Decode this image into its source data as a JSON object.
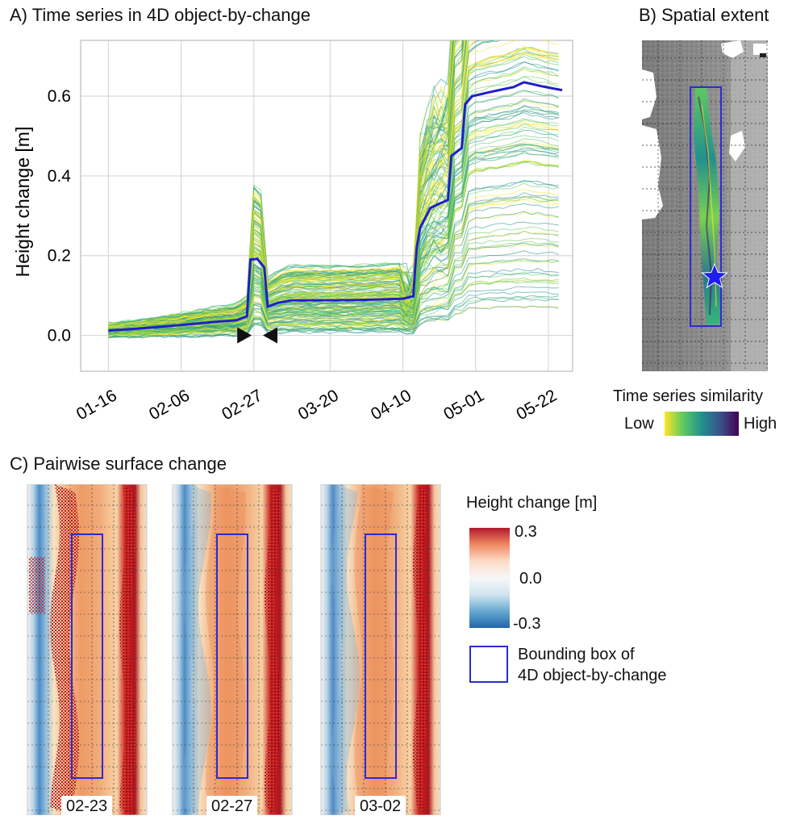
{
  "panel_a": {
    "title": "A) Time series in 4D object-by-change",
    "ylabel": "Height change [m]"
  },
  "panel_b": {
    "title": "B) Spatial extent",
    "colorbar_title": "Time series similarity",
    "low_label": "Low",
    "high_label": "High",
    "colormap": [
      "#fde725",
      "#5ec962",
      "#21918c",
      "#3b528b",
      "#440154"
    ],
    "marker_icon": "star-icon"
  },
  "panel_c": {
    "title": "C) Pairwise surface change",
    "maps": [
      {
        "date": "02-23"
      },
      {
        "date": "02-27"
      },
      {
        "date": "03-02"
      }
    ],
    "colorbar_title": "Height change [m]",
    "ticks": [
      "0.3",
      "0.0",
      "-0.3"
    ],
    "colormap": [
      "#b2182b",
      "#ef8a62",
      "#fddbc7",
      "#f7f7f7",
      "#d1e5f0",
      "#67a9cf",
      "#2166ac"
    ],
    "legend_text_1": "Bounding box of",
    "legend_text_2": "4D object-by-change",
    "bbox_color": "#2b2bd6"
  },
  "chart_data": {
    "type": "line",
    "title": "A) Time series in 4D object-by-change",
    "xlabel": "",
    "ylabel": "Height change [m]",
    "x_ticks": [
      "01-16",
      "02-06",
      "02-27",
      "03-20",
      "04-10",
      "05-01",
      "05-22"
    ],
    "y_ticks": [
      0.0,
      0.2,
      0.4,
      0.6
    ],
    "ylim": [
      -0.09,
      0.74
    ],
    "grid": true,
    "markers": [
      {
        "label": "start",
        "date": "02-25",
        "value": 0.0
      },
      {
        "label": "end",
        "date": "03-02",
        "value": 0.0
      }
    ],
    "series": [
      {
        "color": "#1f1fc8",
        "points": [
          [
            "01-16",
            0.012
          ],
          [
            "01-26",
            0.018
          ],
          [
            "02-06",
            0.026
          ],
          [
            "02-16",
            0.034
          ],
          [
            "02-22",
            0.038
          ],
          [
            "02-25",
            0.048
          ],
          [
            "02-26",
            0.19
          ],
          [
            "02-28",
            0.192
          ],
          [
            "03-01",
            0.17
          ],
          [
            "03-02",
            0.072
          ],
          [
            "03-05",
            0.082
          ],
          [
            "03-09",
            0.088
          ],
          [
            "03-20",
            0.088
          ],
          [
            "03-30",
            0.089
          ],
          [
            "04-10",
            0.092
          ],
          [
            "04-13",
            0.098
          ],
          [
            "04-14",
            0.22
          ],
          [
            "04-15",
            0.27
          ],
          [
            "04-18",
            0.32
          ],
          [
            "04-23",
            0.34
          ],
          [
            "04-24",
            0.45
          ],
          [
            "04-27",
            0.47
          ],
          [
            "04-28",
            0.58
          ],
          [
            "04-30",
            0.6
          ],
          [
            "05-05",
            0.61
          ],
          [
            "05-12",
            0.623
          ],
          [
            "05-15",
            0.635
          ],
          [
            "05-20",
            0.625
          ],
          [
            "05-26",
            0.615
          ]
        ]
      }
    ]
  }
}
